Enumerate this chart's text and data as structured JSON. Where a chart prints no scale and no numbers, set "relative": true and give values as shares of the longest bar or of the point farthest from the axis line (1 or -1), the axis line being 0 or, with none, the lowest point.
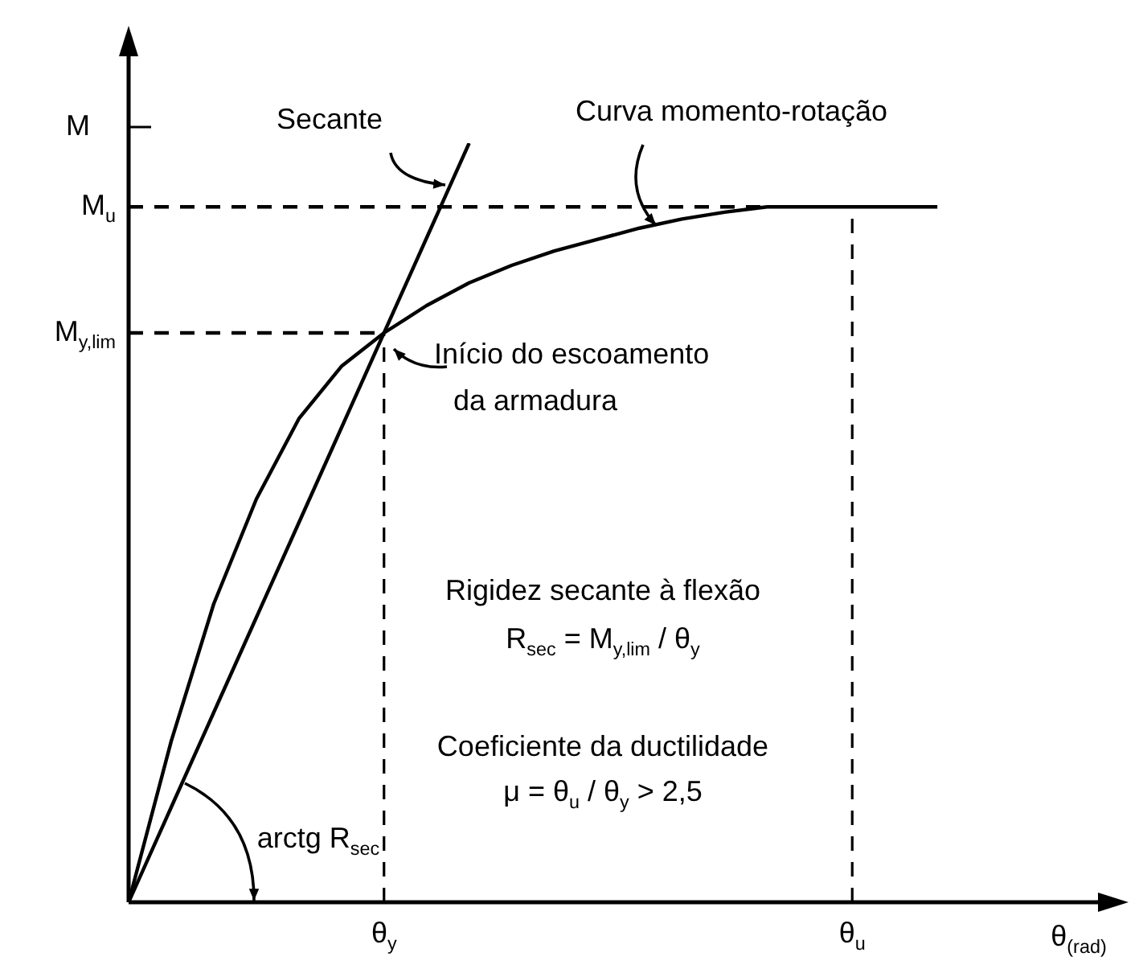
{
  "chart_data": {
    "type": "line",
    "relative": true,
    "ylabel": "M",
    "xlabel": "θ$_{(rad)}$",
    "marker": "none",
    "line_style": "solid",
    "categories": [
      null,
      null,
      null,
      null,
      null,
      null,
      "θ$_{y}$",
      null,
      null,
      null,
      null,
      null,
      null,
      null,
      null,
      null,
      null,
      "θ$_{u}$",
      null,
      null,
      null,
      null,
      null,
      null
    ],
    "series": [
      {
        "color": "#000000",
        "values": [
          0,
          0.212,
          0.393,
          0.531,
          0.637,
          0.706,
          0.75,
          0.786,
          0.816,
          0.839,
          0.858,
          0.873,
          0.888,
          0.9,
          0.909,
          0.916,
          0.916,
          0.916,
          0.916,
          0.916,
          null,
          null,
          null,
          null
        ]
      },
      {
        "color": "#000000",
        "values": [
          0,
          0.125,
          0.25,
          0.375,
          0.5,
          0.625,
          0.75,
          0.875,
          1,
          null,
          null,
          null,
          null,
          null,
          null,
          null,
          null,
          null,
          null,
          null,
          null,
          null,
          null,
          null
        ]
      }
    ],
    "ref_lines": [
      {
        "axis": "y",
        "value": 0.916,
        "label": "M$_{u}$",
        "line_style": "dashed"
      },
      {
        "axis": "y",
        "value": 0.75,
        "label": "M$_{y,lim}$",
        "line_style": "dashed"
      },
      {
        "axis": "x",
        "value": "θ$_{y}$",
        "line_style": "dashed"
      },
      {
        "axis": "x",
        "value": "θ$_{u}$",
        "line_style": "dashed"
      }
    ],
    "annotations": [
      "Secante",
      "Curva momento-rotação",
      "Início do escoamento",
      "da armadura",
      "Rigidez secante à flexão",
      "R$_{sec}$ = M$_{y,lim}$ / θ$_{y}$",
      "Coeficiente da ductilidade",
      "μ = θ$_{u}$ / θ$_{y}$ > 2,5",
      "arctg R$_{sec}$"
    ]
  }
}
